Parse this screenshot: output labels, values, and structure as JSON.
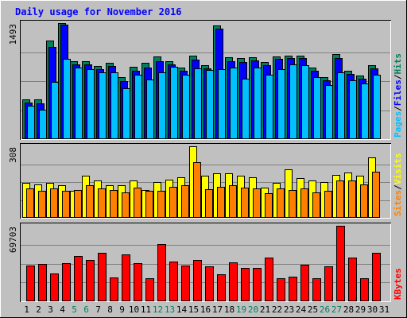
{
  "chart_data": {
    "type": "bar",
    "title": "Daily usage for November 2016",
    "categories": [
      "1",
      "2",
      "3",
      "4",
      "5",
      "6",
      "7",
      "8",
      "9",
      "10",
      "11",
      "12",
      "13",
      "14",
      "15",
      "16",
      "17",
      "18",
      "19",
      "20",
      "21",
      "22",
      "23",
      "24",
      "25",
      "26",
      "27",
      "28",
      "29",
      "30",
      "31"
    ],
    "weekend_days": [
      "5",
      "6",
      "12",
      "13",
      "19",
      "20",
      "26",
      "27"
    ],
    "panels": [
      {
        "id": "hits-files-pages",
        "ylim": [
          0,
          1493
        ],
        "max_label": "1493",
        "labels": [
          "Pages",
          "Files",
          "Hits"
        ],
        "series": [
          {
            "name": "Hits",
            "color": "#00805c",
            "values": [
              510,
              510,
              1270,
              1493,
              1000,
              1000,
              940,
              980,
              800,
              930,
              980,
              1060,
              1000,
              920,
              1070,
              950,
              1460,
              1050,
              1040,
              1050,
              990,
              1060,
              1070,
              1070,
              920,
              800,
              1090,
              880,
              820,
              950,
              null
            ]
          },
          {
            "name": "Files",
            "color": "#0000ff",
            "values": [
              470,
              460,
              1190,
              1470,
              960,
              960,
              900,
              940,
              750,
              880,
              920,
              1000,
              960,
              880,
              1020,
              910,
              1420,
              1000,
              990,
              1010,
              950,
              1030,
              1040,
              1040,
              880,
              760,
              1040,
              840,
              780,
              910,
              null
            ]
          },
          {
            "name": "Pages",
            "color": "#00c0ff",
            "values": [
              430,
              380,
              740,
              1030,
              920,
              900,
              860,
              860,
              650,
              830,
              770,
              860,
              930,
              830,
              910,
              890,
              900,
              920,
              780,
              920,
              830,
              900,
              960,
              950,
              800,
              700,
              860,
              760,
              720,
              830,
              null
            ]
          }
        ]
      },
      {
        "id": "visits-sites",
        "ylim": [
          0,
          308
        ],
        "max_label": "308",
        "labels": [
          "Sites",
          "Visits"
        ],
        "series": [
          {
            "name": "Visits",
            "color": "#ffff00",
            "values": [
              150,
              145,
              150,
              140,
              115,
              180,
              160,
              140,
              140,
              160,
              120,
              155,
              165,
              175,
              308,
              180,
              190,
              190,
              180,
              175,
              130,
              150,
              210,
              170,
              160,
              155,
              185,
              195,
              180,
              260,
              null
            ]
          },
          {
            "name": "Sites",
            "color": "#ff8000",
            "values": [
              125,
              118,
              125,
              115,
              120,
              140,
              125,
              120,
              110,
              130,
              118,
              115,
              135,
              140,
              240,
              122,
              135,
              140,
              130,
              125,
              105,
              125,
              120,
              128,
              110,
              118,
              160,
              160,
              145,
              200,
              null
            ]
          }
        ]
      },
      {
        "id": "kbytes",
        "ylim": [
          0,
          69703
        ],
        "max_label": "69703",
        "labels": [
          "KBytes"
        ],
        "series": [
          {
            "name": "KBytes",
            "color": "#ff0000",
            "values": [
              33000,
              34500,
              26000,
              35000,
              42000,
              38000,
              45000,
              22000,
              43000,
              35000,
              21000,
              53000,
              37000,
              33000,
              38000,
              32000,
              25000,
              36000,
              31000,
              31000,
              40000,
              21000,
              23000,
              34000,
              21000,
              32500,
              69703,
              40000,
              21000,
              45000,
              null
            ]
          }
        ]
      }
    ]
  },
  "colors": {
    "background": "#c0c0c0",
    "title": "#0000ff",
    "weekend_label": "#00805c",
    "grid": "#808080"
  }
}
